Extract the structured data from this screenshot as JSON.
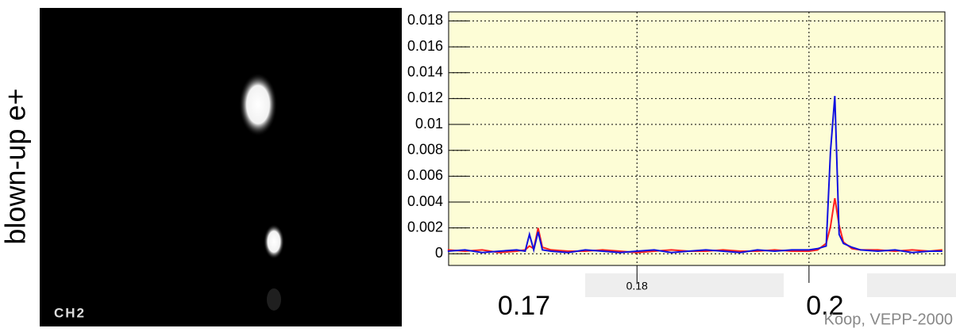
{
  "side_label": "blown-up e+",
  "image_label": "CH2",
  "credit": "Koop, VEPP-2000",
  "chart_data": {
    "type": "line",
    "annotations": [
      "0.17"
    ],
    "x": [
      0.158,
      0.16,
      0.162,
      0.164,
      0.166,
      0.167,
      0.1675,
      0.168,
      0.1685,
      0.169,
      0.17,
      0.172,
      0.174,
      0.176,
      0.178,
      0.18,
      0.182,
      0.184,
      0.186,
      0.188,
      0.19,
      0.192,
      0.194,
      0.196,
      0.198,
      0.2,
      0.201,
      0.202,
      0.2025,
      0.203,
      0.2035,
      0.204,
      0.205,
      0.206,
      0.208,
      0.21,
      0.212,
      0.214,
      0.2155
    ],
    "series": [
      {
        "color": "#ff2020",
        "values": [
          0.0003,
          0.0002,
          0.0003,
          0.0001,
          0.0002,
          0.0003,
          0.0006,
          0.0004,
          0.002,
          0.0005,
          0.0003,
          0.0002,
          0.0002,
          0.0003,
          0.0002,
          0.0001,
          0.0002,
          0.0003,
          0.0002,
          0.0002,
          0.0003,
          0.0002,
          0.0002,
          0.0003,
          0.0002,
          0.0002,
          0.0003,
          0.0008,
          0.0021,
          0.0043,
          0.0022,
          0.0009,
          0.0004,
          0.0003,
          0.0003,
          0.0002,
          0.0003,
          0.0002,
          0.0003
        ]
      },
      {
        "color": "#1010e0",
        "values": [
          0.0002,
          0.0003,
          0.0001,
          0.0002,
          0.0003,
          0.0002,
          0.0015,
          0.0003,
          0.0017,
          0.0003,
          0.0002,
          0.0001,
          0.0003,
          0.0002,
          0.0001,
          0.0002,
          0.0003,
          0.0001,
          0.0002,
          0.0003,
          0.0002,
          0.0001,
          0.0003,
          0.0002,
          0.0003,
          0.0003,
          0.0004,
          0.0006,
          0.0079,
          0.0122,
          0.0015,
          0.0008,
          0.0005,
          0.0003,
          0.0002,
          0.0003,
          0.0001,
          0.0002,
          0.0002
        ]
      }
    ],
    "xlim": [
      0.1581,
      0.2158
    ],
    "ylim": [
      -0.0009,
      0.0187
    ],
    "xticks": [
      0.18,
      0.2
    ],
    "yticks": [
      0,
      0.002,
      0.004,
      0.006,
      0.008,
      0.01,
      0.012,
      0.014,
      0.016,
      0.018
    ],
    "grid": true,
    "plot_color": "#fdfdd6"
  }
}
